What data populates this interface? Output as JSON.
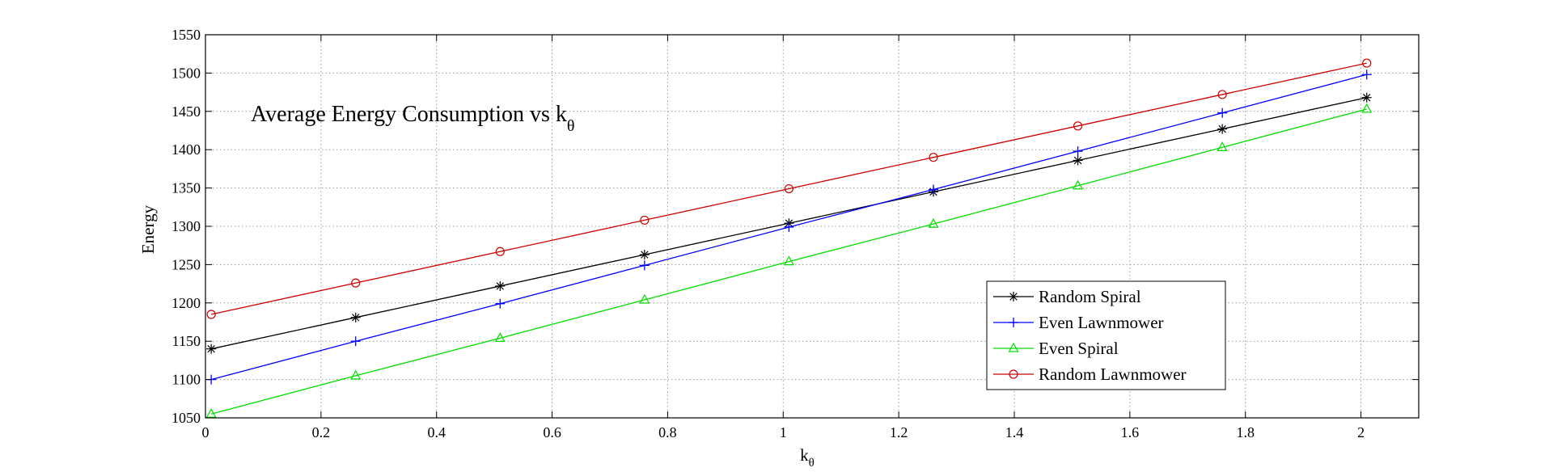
{
  "chart_data": {
    "type": "line",
    "title": "Average Energy Consumption vs k",
    "title_sub": "θ",
    "xlabel": "k",
    "xlabel_sub": "θ",
    "ylabel": "Energy",
    "xlim": [
      0,
      2.1
    ],
    "ylim": [
      1050,
      1550
    ],
    "xticks": [
      0,
      0.2,
      0.4,
      0.6,
      0.8,
      1,
      1.2,
      1.4,
      1.6,
      1.8,
      2
    ],
    "xtick_labels": [
      "0",
      "0.2",
      "0.4",
      "0.6",
      "0.8",
      "1",
      "1.2",
      "1.4",
      "1.6",
      "1.8",
      "2"
    ],
    "yticks": [
      1050,
      1100,
      1150,
      1200,
      1250,
      1300,
      1350,
      1400,
      1450,
      1500,
      1550
    ],
    "ytick_labels": [
      "1050",
      "1100",
      "1150",
      "1200",
      "1250",
      "1300",
      "1350",
      "1400",
      "1450",
      "1500",
      "1550"
    ],
    "grid": true,
    "legend_position": "bottom-right",
    "x": [
      0.01,
      0.26,
      0.51,
      0.76,
      1.01,
      1.26,
      1.51,
      1.76,
      2.01
    ],
    "series": [
      {
        "name": "Random Spiral",
        "color": "#000000",
        "marker": "star",
        "values": [
          1140,
          1181,
          1222,
          1263,
          1304,
          1345,
          1386,
          1427,
          1468
        ]
      },
      {
        "name": "Even Lawnmower",
        "color": "#0000ff",
        "marker": "plus",
        "values": [
          1100,
          1150,
          1199,
          1249,
          1299,
          1348,
          1398,
          1448,
          1498
        ]
      },
      {
        "name": "Even Spiral",
        "color": "#00dd00",
        "marker": "triangle",
        "values": [
          1055,
          1105,
          1154,
          1204,
          1254,
          1303,
          1353,
          1403,
          1453
        ]
      },
      {
        "name": "Random Lawnmower",
        "color": "#cc0000",
        "marker": "circle",
        "values": [
          1185,
          1226,
          1267,
          1308,
          1349,
          1390,
          1431,
          1472,
          1513
        ]
      }
    ]
  }
}
